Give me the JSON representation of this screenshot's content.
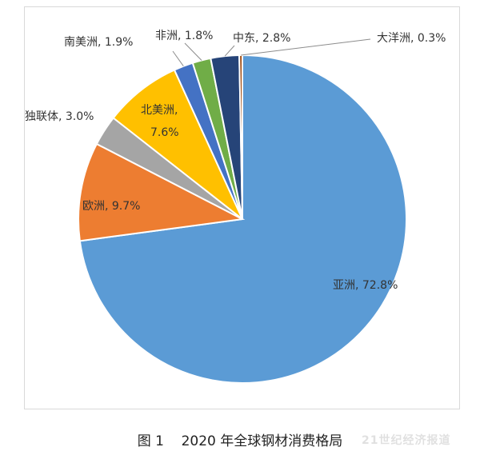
{
  "chart_data": {
    "type": "pie",
    "categories": [
      "亚洲",
      "欧洲",
      "独联体",
      "北美洲",
      "南美洲",
      "非洲",
      "中东",
      "大洋洲"
    ],
    "values": [
      72.8,
      9.7,
      3.0,
      7.6,
      1.9,
      1.8,
      2.8,
      0.3
    ],
    "labels": [
      "亚洲, 72.8%",
      "欧洲, 9.7%",
      "独联体, 3.0%",
      "北美洲,\n7.6%",
      "南美洲, 1.9%",
      "非洲, 1.8%",
      "中东, 2.8%",
      "大洋洲, 0.3%"
    ],
    "colors": [
      "#5b9bd5",
      "#ed7d31",
      "#a5a5a5",
      "#ffc000",
      "#4472c4",
      "#70ad47",
      "#264478",
      "#9e480e"
    ],
    "title": "",
    "order": "clockwise from top",
    "legend": "none"
  },
  "caption": "图 1    2020 年全球钢材消费格局",
  "watermark": "21世纪经济报道"
}
